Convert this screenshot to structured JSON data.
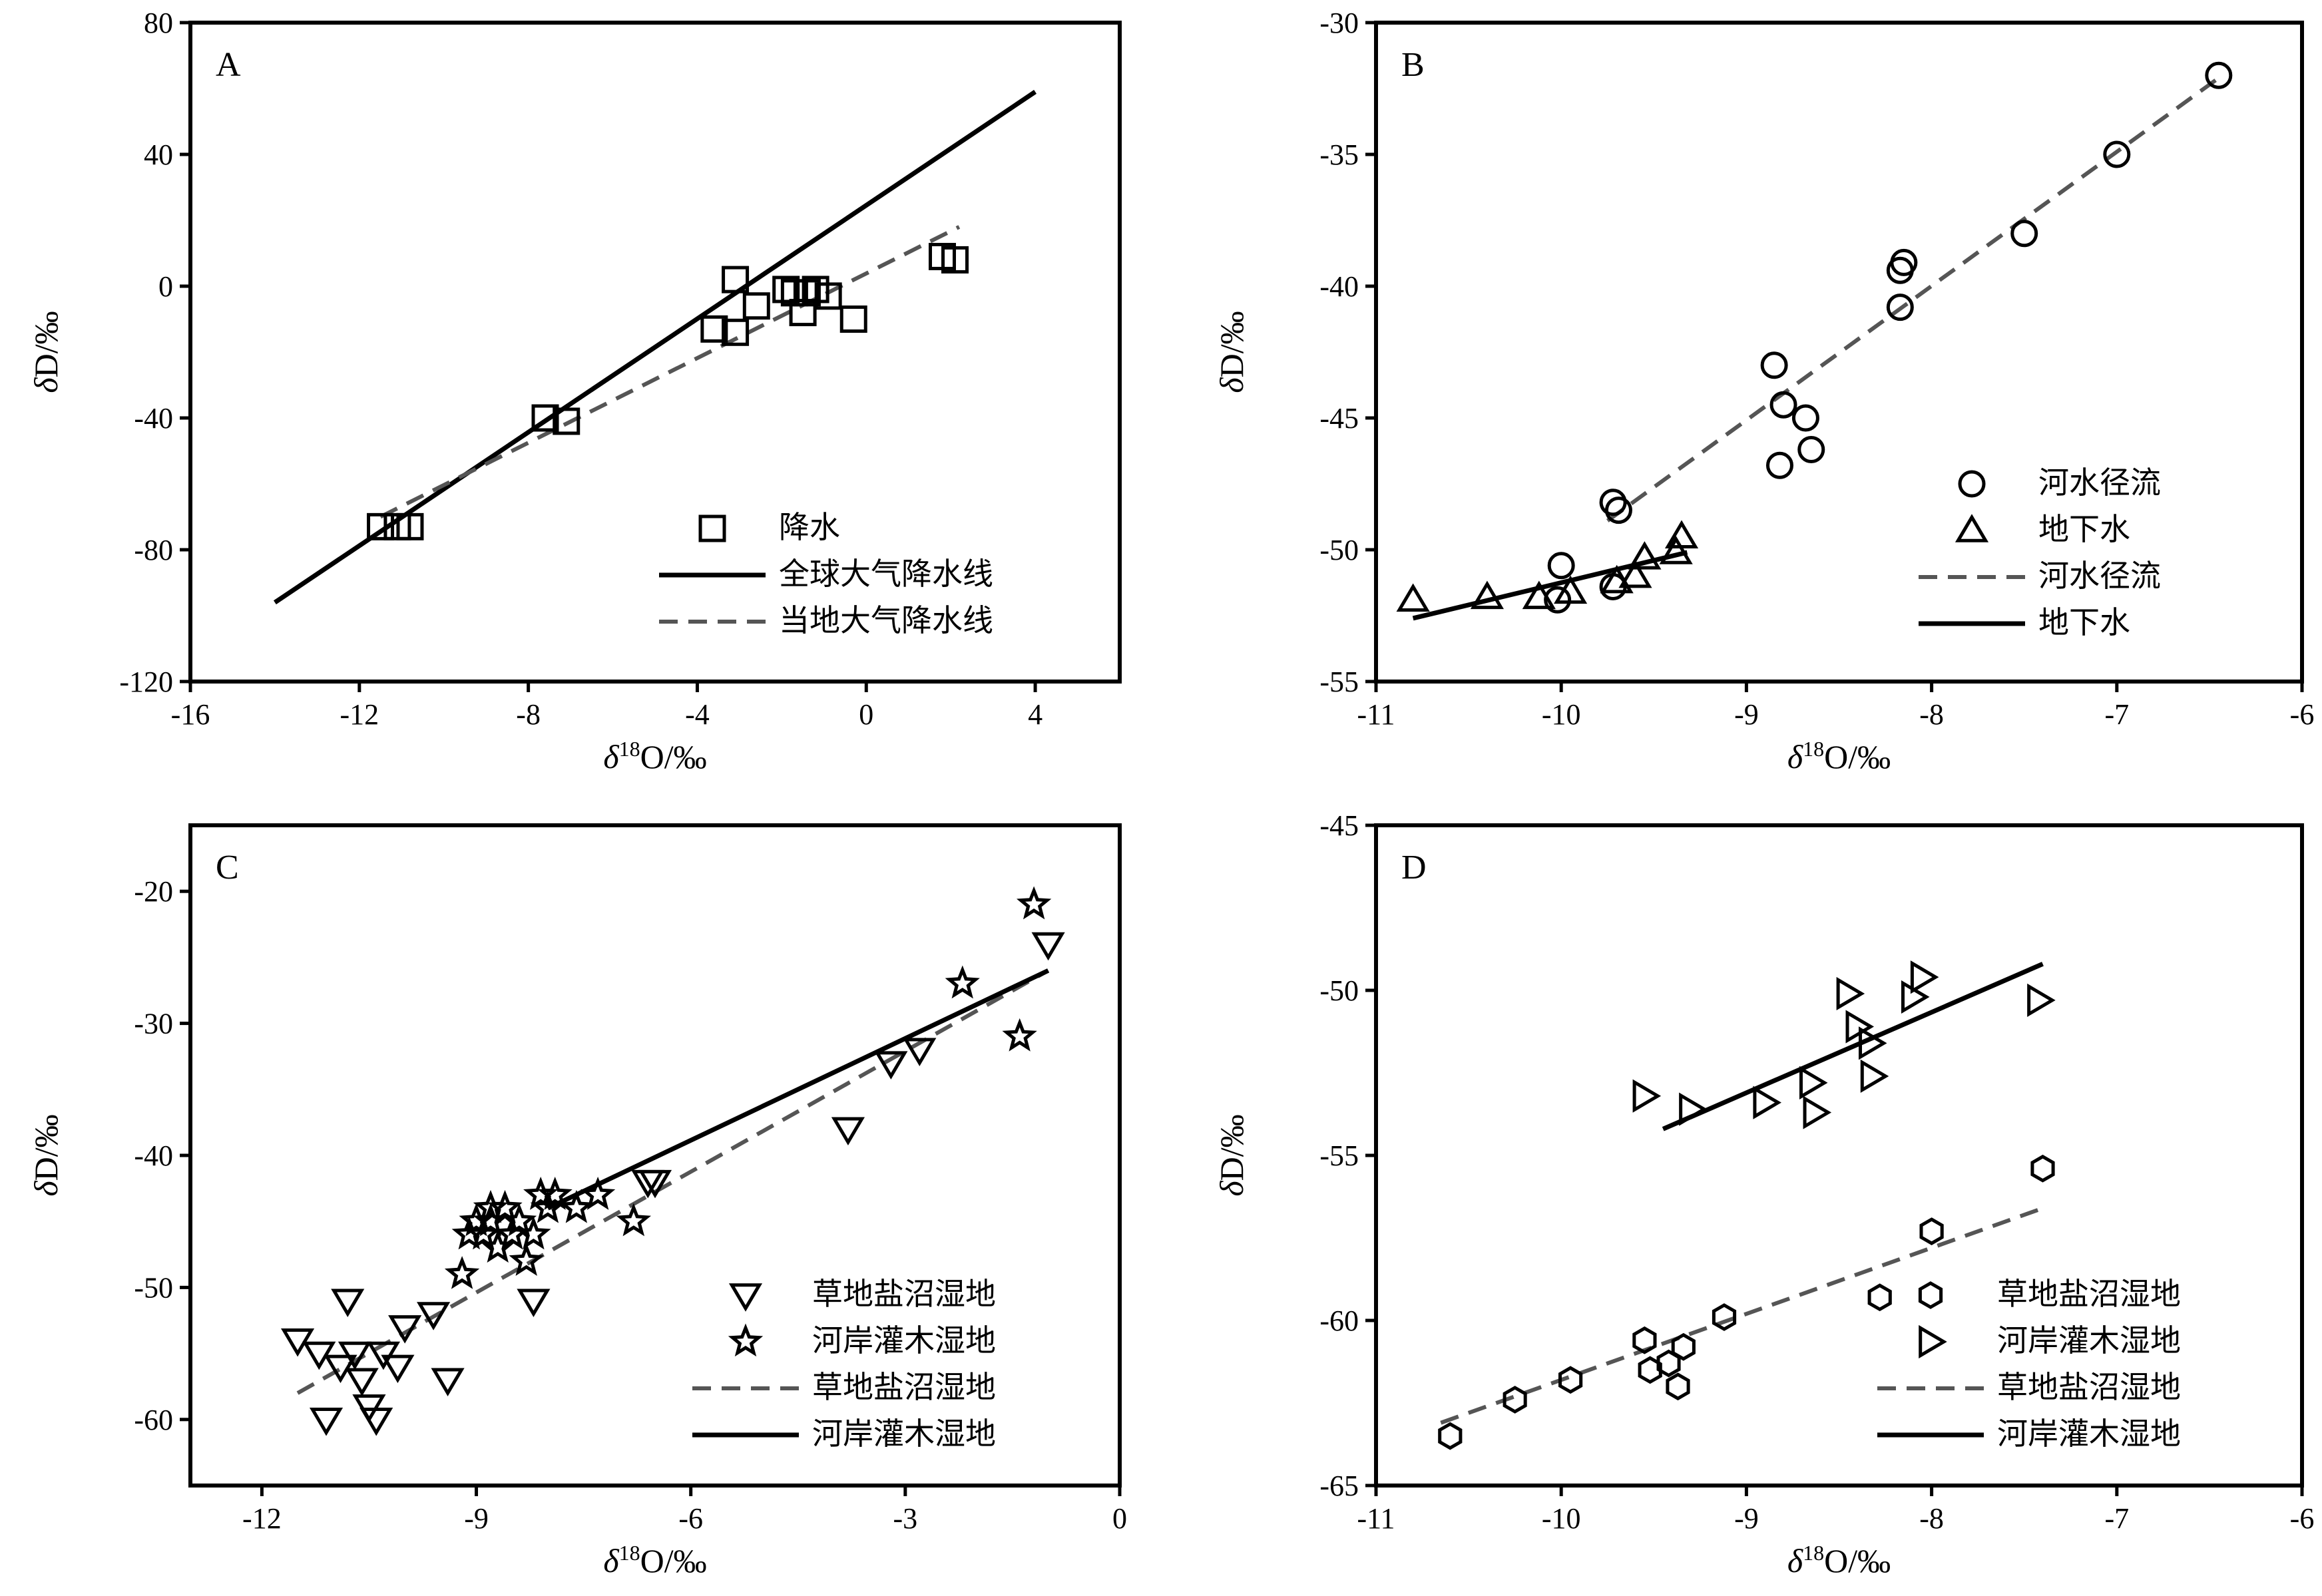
{
  "chart_data": [
    {
      "type": "scatter",
      "panel": "A",
      "xlabel": "δ18O/‰",
      "ylabel": "δD/‰",
      "xlim": [
        -16,
        6
      ],
      "ylim": [
        -120,
        80
      ],
      "xticks": [
        -16,
        -12,
        -8,
        -4,
        0,
        4
      ],
      "yticks": [
        -120,
        -80,
        -40,
        0,
        40,
        80
      ],
      "legend_position": "bottom-right",
      "series": [
        {
          "name": "降水",
          "kind": "points",
          "marker": "square",
          "x": [
            -11.5,
            -11.1,
            -10.8,
            -7.6,
            -7.1,
            -3.6,
            -3.1,
            -3.1,
            -2.6,
            -1.9,
            -1.7,
            -1.5,
            -1.4,
            -1.2,
            -0.9,
            -0.3,
            1.8,
            2.1
          ],
          "y": [
            -73,
            -73,
            -73,
            -40,
            -41,
            -13,
            -14,
            2,
            -6,
            -1,
            -2,
            -8,
            -2,
            -1,
            -3,
            -10,
            9,
            8
          ]
        },
        {
          "name": "全球大气降水线",
          "kind": "line",
          "style": "solid",
          "x": [
            -14,
            4
          ],
          "y": [
            -96,
            59
          ]
        },
        {
          "name": "当地大气降水线",
          "kind": "line",
          "style": "dashed",
          "x": [
            -11.5,
            2.2
          ],
          "y": [
            -70,
            18
          ]
        }
      ]
    },
    {
      "type": "scatter",
      "panel": "B",
      "xlabel": "δ18O/‰",
      "ylabel": "δD/‰",
      "xlim": [
        -11,
        -6
      ],
      "ylim": [
        -55,
        -30
      ],
      "xticks": [
        -11,
        -10,
        -9,
        -8,
        -7,
        -6
      ],
      "yticks": [
        -55,
        -50,
        -45,
        -40,
        -35,
        -30
      ],
      "legend_position": "right",
      "series": [
        {
          "name": "河水径流",
          "kind": "points",
          "marker": "circle",
          "x": [
            -6.45,
            -7.0,
            -7.5,
            -8.15,
            -8.17,
            -8.17,
            -8.85,
            -8.8,
            -8.68,
            -8.65,
            -8.82,
            -9.72,
            -9.69,
            -10.0,
            -10.02,
            -9.72
          ],
          "y": [
            -32.0,
            -35.0,
            -38.0,
            -39.1,
            -39.4,
            -40.8,
            -43.0,
            -44.5,
            -45.0,
            -46.2,
            -46.8,
            -48.2,
            -48.5,
            -50.6,
            -51.9,
            -51.4
          ]
        },
        {
          "name": "地下水",
          "kind": "points",
          "marker": "triangle-up",
          "x": [
            -10.8,
            -10.4,
            -10.12,
            -9.95,
            -9.7,
            -9.6,
            -9.55,
            -9.38,
            -9.35
          ],
          "y": [
            -51.9,
            -51.8,
            -51.8,
            -51.6,
            -51.2,
            -51.0,
            -50.3,
            -50.1,
            -49.5
          ]
        },
        {
          "name": "河水径流",
          "kind": "line",
          "style": "dashed",
          "x": [
            -9.75,
            -6.45
          ],
          "y": [
            -48.9,
            -32.1
          ]
        },
        {
          "name": "地下水",
          "kind": "line",
          "style": "solid",
          "x": [
            -10.8,
            -9.32
          ],
          "y": [
            -52.6,
            -50.1
          ]
        }
      ]
    },
    {
      "type": "scatter",
      "panel": "C",
      "xlabel": "δ18O/‰",
      "ylabel": "δD/‰",
      "xlim": [
        -13,
        0
      ],
      "ylim": [
        -65,
        -15
      ],
      "xticks": [
        -12,
        -9,
        -6,
        -3,
        0
      ],
      "yticks": [
        -60,
        -50,
        -40,
        -30,
        -20
      ],
      "legend_position": "bottom-right",
      "series": [
        {
          "name": "草地盐沼湿地",
          "kind": "points",
          "marker": "triangle-down",
          "x": [
            -11.5,
            -11.2,
            -11.1,
            -10.9,
            -10.8,
            -10.7,
            -10.6,
            -10.5,
            -10.4,
            -10.3,
            -10.1,
            -10.0,
            -9.6,
            -9.4,
            -8.2,
            -6.6,
            -6.5,
            -3.8,
            -3.2,
            -2.8,
            -1.0
          ],
          "y": [
            -54,
            -55,
            -60,
            -56,
            -51,
            -55,
            -57,
            -59,
            -60,
            -55,
            -56,
            -53,
            -52,
            -57,
            -51,
            -42,
            -42,
            -38,
            -33,
            -32,
            -24
          ]
        },
        {
          "name": "河岸灌木湿地",
          "kind": "points",
          "marker": "star",
          "x": [
            -9.2,
            -9.1,
            -9.0,
            -8.9,
            -8.8,
            -8.8,
            -8.7,
            -8.6,
            -8.5,
            -8.4,
            -8.3,
            -8.2,
            -8.1,
            -8.0,
            -7.9,
            -7.6,
            -7.3,
            -6.8,
            -2.2,
            -1.4,
            -1.2
          ],
          "y": [
            -49,
            -46,
            -45,
            -46,
            -44,
            -45,
            -47,
            -44,
            -46,
            -45,
            -48,
            -46,
            -43,
            -44,
            -43,
            -44,
            -43,
            -45,
            -27,
            -31,
            -21
          ]
        },
        {
          "name": "草地盐沼湿地",
          "kind": "line",
          "style": "dashed",
          "x": [
            -11.5,
            -1.0
          ],
          "y": [
            -58,
            -26
          ]
        },
        {
          "name": "河岸灌木湿地",
          "kind": "line",
          "style": "solid",
          "x": [
            -8.0,
            -1.0
          ],
          "y": [
            -44,
            -26
          ]
        }
      ]
    },
    {
      "type": "scatter",
      "panel": "D",
      "xlabel": "δ18O/‰",
      "ylabel": "δD/‰",
      "xlim": [
        -11,
        -6
      ],
      "ylim": [
        -65,
        -45
      ],
      "xticks": [
        -11,
        -10,
        -9,
        -8,
        -7,
        -6
      ],
      "yticks": [
        -65,
        -60,
        -55,
        -50,
        -45
      ],
      "legend_position": "bottom-right",
      "series": [
        {
          "name": "草地盐沼湿地",
          "kind": "points",
          "marker": "hexagon",
          "x": [
            -10.6,
            -10.25,
            -9.95,
            -9.55,
            -9.52,
            -9.42,
            -9.37,
            -9.34,
            -9.12,
            -8.28,
            -8.0,
            -7.4
          ],
          "y": [
            -63.5,
            -62.4,
            -61.8,
            -60.6,
            -61.5,
            -61.3,
            -62.0,
            -60.8,
            -59.9,
            -59.3,
            -57.3,
            -55.4
          ]
        },
        {
          "name": "河岸灌木湿地",
          "kind": "points",
          "marker": "triangle-right",
          "x": [
            -9.55,
            -9.3,
            -8.9,
            -8.65,
            -8.63,
            -8.45,
            -8.4,
            -8.33,
            -8.32,
            -8.1,
            -8.05,
            -7.42
          ],
          "y": [
            -53.2,
            -53.6,
            -53.4,
            -52.8,
            -53.7,
            -50.1,
            -51.1,
            -51.6,
            -52.6,
            -50.2,
            -49.6,
            -50.3
          ]
        },
        {
          "name": "草地盐沼湿地",
          "kind": "line",
          "style": "dashed",
          "x": [
            -10.65,
            -7.4
          ],
          "y": [
            -63.1,
            -56.6
          ]
        },
        {
          "name": "河岸灌木湿地",
          "kind": "line",
          "style": "solid",
          "x": [
            -9.45,
            -7.4
          ],
          "y": [
            -54.2,
            -49.2
          ]
        }
      ]
    }
  ]
}
